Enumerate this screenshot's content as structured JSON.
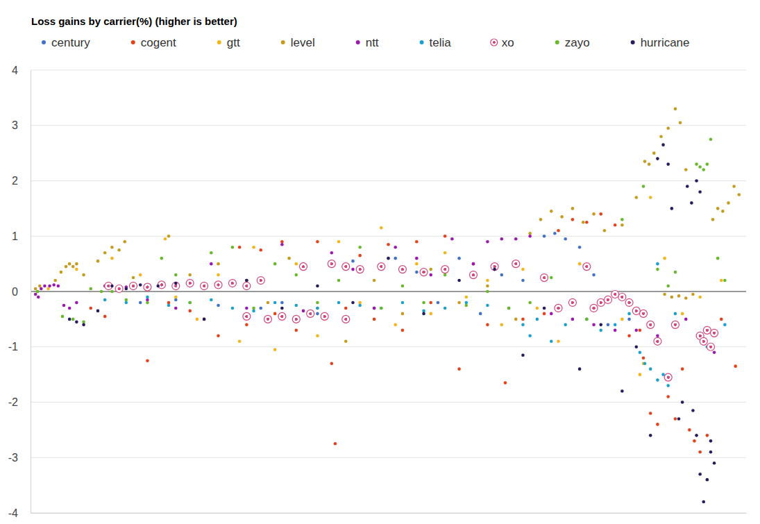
{
  "chart_data": {
    "type": "scatter",
    "title": "Loss gains by carrier(%) (higher is better)",
    "xlim": [
      -5,
      1005
    ],
    "xticks": [],
    "ylim": [
      -4,
      4
    ],
    "yticks": [
      -4,
      -3,
      -2,
      -1,
      0,
      1,
      2,
      3,
      4
    ],
    "grid": true,
    "legend": "top",
    "tick_labels": "y",
    "series": [
      {
        "name": "century",
        "color": "#4472c4",
        "marker": "circle",
        "x": [
          150,
          200,
          260,
          300,
          320,
          350,
          380,
          400,
          420,
          450,
          480,
          510,
          540,
          570,
          600,
          630,
          660,
          690,
          720,
          735,
          750,
          770,
          790,
          810,
          840
        ],
        "values": [
          -0.2,
          -0.15,
          -0.25,
          0.2,
          -0.3,
          -0.2,
          0.5,
          -0.4,
          0.5,
          0.55,
          -0.3,
          0.6,
          0.35,
          -0.2,
          0.6,
          -0.4,
          0.3,
          0.2,
          1.0,
          1.05,
          0.95,
          0.8,
          0.3,
          -0.6,
          -0.5
        ]
      },
      {
        "name": "cogent",
        "color": "#e2431c",
        "marker": "circle",
        "x": [
          80,
          100,
          160,
          190,
          220,
          240,
          260,
          290,
          300,
          320,
          340,
          350,
          370,
          400,
          420,
          440,
          460,
          480,
          500,
          520,
          540,
          560,
          580,
          600,
          620,
          640,
          665,
          690,
          720,
          740,
          760,
          780,
          800,
          820,
          840,
          855,
          860,
          870,
          880,
          895,
          905,
          915,
          925,
          932,
          940,
          950,
          970,
          990,
          425
        ],
        "values": [
          -0.3,
          -0.45,
          -1.25,
          -0.2,
          -0.35,
          -0.5,
          -0.8,
          0.8,
          -0.6,
          0.75,
          -0.4,
          0.9,
          -0.7,
          0.9,
          -1.3,
          -0.3,
          0.65,
          -0.5,
          0.85,
          -0.7,
          0.9,
          -0.2,
          1.0,
          -1.4,
          0.5,
          -0.6,
          -1.65,
          -0.5,
          -0.4,
          1.1,
          1.3,
          1.25,
          1.4,
          1.2,
          -0.8,
          -0.7,
          -1.2,
          -2.2,
          -2.4,
          -1.9,
          -2.3,
          -1.4,
          -2.5,
          -2.7,
          -2.9,
          -2.6,
          -0.5,
          -1.35,
          -2.75
        ]
      },
      {
        "name": "gtt",
        "color": "#f2b51c",
        "marker": "circle",
        "x": [
          20,
          60,
          110,
          150,
          185,
          200,
          230,
          260,
          290,
          310,
          340,
          370,
          400,
          410,
          430,
          460,
          490,
          510,
          540,
          560,
          580,
          610,
          640,
          660,
          690,
          710,
          740,
          770,
          800,
          830,
          855,
          860,
          870,
          890,
          915,
          940,
          970
        ],
        "values": [
          0.05,
          0.4,
          0.6,
          0.3,
          0.95,
          -0.1,
          -0.5,
          0.3,
          -0.9,
          0.8,
          -1.05,
          0.5,
          -0.8,
          -0.5,
          0.9,
          -0.2,
          1.15,
          -0.6,
          0.5,
          -0.4,
          0.7,
          -0.1,
          0.2,
          -0.6,
          0.4,
          -0.3,
          -0.9,
          0.5,
          -0.2,
          -0.5,
          -1.5,
          -1.3,
          1.7,
          0.6,
          -0.4,
          -0.1,
          0.2
        ]
      },
      {
        "name": "level",
        "color": "#c59c1f",
        "marker": "circle",
        "x": [
          2,
          5,
          8,
          30,
          38,
          45,
          50,
          55,
          60,
          70,
          90,
          100,
          110,
          120,
          128,
          140,
          160,
          190,
          220,
          260,
          300,
          330,
          360,
          400,
          440,
          480,
          520,
          560,
          600,
          640,
          680,
          700,
          715,
          730,
          745,
          760,
          775,
          790,
          805,
          830,
          850,
          862,
          868,
          875,
          885,
          895,
          905,
          912,
          920,
          890,
          900,
          910,
          920,
          930,
          958,
          965,
          972,
          980,
          988,
          995
        ],
        "values": [
          0.05,
          0,
          0.1,
          0.2,
          0.35,
          0.45,
          0.5,
          0.45,
          0.5,
          0.3,
          0.55,
          0.7,
          0.8,
          0.75,
          0.9,
          0.25,
          0.1,
          1.0,
          0.3,
          0.5,
          0.2,
          -0.2,
          0.6,
          -0.3,
          -0.9,
          0.2,
          -0.4,
          0.4,
          -0.2,
          0.1,
          -0.5,
          1.05,
          1.3,
          1.45,
          1.35,
          1.5,
          1.25,
          1.4,
          1.1,
          1.2,
          1.7,
          2.35,
          2.3,
          2.5,
          2.8,
          2.95,
          3.3,
          3.05,
          2.2,
          -0.05,
          -0.1,
          -0.08,
          -0.12,
          -0.05,
          1.3,
          1.5,
          1.45,
          1.6,
          1.9,
          1.75
        ]
      },
      {
        "name": "ntt",
        "color": "#9b1aae",
        "marker": "circle",
        "x": [
          2,
          6,
          10,
          15,
          22,
          28,
          34,
          42,
          50,
          60,
          100,
          130,
          160,
          200,
          250,
          300,
          350,
          380,
          420,
          450,
          480,
          510,
          540,
          560,
          590,
          620,
          640,
          660,
          680,
          700,
          730,
          760,
          790,
          820,
          850,
          880,
          920,
          945,
          960
        ],
        "values": [
          -0.05,
          -0.1,
          0.05,
          0.1,
          0.1,
          0.12,
          0.1,
          -0.25,
          -0.3,
          -0.2,
          0.1,
          0.08,
          -0.15,
          -0.3,
          0.5,
          -0.3,
          0.85,
          -0.35,
          0.7,
          0.4,
          -0.3,
          0.8,
          0.6,
          0.3,
          0.95,
          0.5,
          0.9,
          0.95,
          0.95,
          1.0,
          -0.4,
          -0.5,
          -0.6,
          -0.7,
          -0.7,
          -0.8,
          -0.5,
          -0.9,
          -1.1
        ]
      },
      {
        "name": "telia",
        "color": "#1ba1cc",
        "marker": "circle",
        "x": [
          100,
          130,
          160,
          190,
          220,
          250,
          280,
          310,
          340,
          370,
          400,
          430,
          460,
          490,
          520,
          550,
          580,
          610,
          640,
          670,
          690,
          700,
          710,
          730,
          750,
          780,
          800,
          820,
          840,
          855,
          862,
          870,
          880,
          888,
          895,
          880,
          905,
          950,
          960,
          975
        ],
        "values": [
          -0.15,
          -0.2,
          -0.1,
          -0.25,
          -0.2,
          -0.15,
          -0.3,
          -0.35,
          -0.2,
          -0.25,
          -0.3,
          -0.2,
          -0.25,
          -0.3,
          -0.2,
          -0.35,
          -0.3,
          -0.2,
          -0.25,
          -0.3,
          -0.6,
          -0.8,
          -0.5,
          -0.9,
          -0.6,
          -0.5,
          -0.7,
          -0.6,
          -0.4,
          -1.1,
          -1.3,
          -1.4,
          -1.6,
          -1.5,
          -1.7,
          0.5,
          -0.4,
          -1.0,
          -0.8,
          -0.6
        ]
      },
      {
        "name": "xo",
        "color": "#d6457e",
        "marker": "ring",
        "x": [
          105,
          120,
          140,
          160,
          180,
          200,
          220,
          240,
          260,
          280,
          300,
          320,
          300,
          330,
          350,
          370,
          390,
          410,
          440,
          380,
          420,
          440,
          460,
          490,
          520,
          550,
          580,
          620,
          650,
          680,
          720,
          740,
          760,
          780,
          790,
          800,
          810,
          820,
          830,
          840,
          850,
          860,
          870,
          880,
          895,
          905,
          940,
          945,
          950,
          955,
          960
        ],
        "values": [
          0.1,
          0.05,
          0.1,
          0.08,
          0.12,
          0.1,
          0.15,
          0.1,
          0.12,
          0.15,
          0.1,
          0.2,
          -0.45,
          -0.5,
          -0.45,
          -0.5,
          -0.4,
          -0.45,
          -0.5,
          0.45,
          0.5,
          0.45,
          0.4,
          0.45,
          0.4,
          0.35,
          0.4,
          0.3,
          0.45,
          0.5,
          0.25,
          -0.3,
          -0.2,
          0.45,
          -0.3,
          -0.2,
          -0.15,
          -0.05,
          -0.1,
          -0.2,
          -0.35,
          -0.4,
          -0.6,
          -0.9,
          -1.55,
          -0.6,
          -0.8,
          -0.9,
          -0.7,
          -1.0,
          -0.75
        ]
      },
      {
        "name": "zayo",
        "color": "#6ab82c",
        "marker": "circle",
        "x": [
          5,
          40,
          55,
          70,
          80,
          95,
          110,
          130,
          160,
          180,
          200,
          220,
          250,
          280,
          310,
          340,
          370,
          400,
          430,
          460,
          490,
          520,
          550,
          580,
          610,
          640,
          670,
          700,
          730,
          780,
          830,
          860,
          880,
          895,
          905,
          935,
          940,
          945,
          950,
          955,
          965,
          975
        ],
        "values": [
          0,
          -0.45,
          -0.5,
          -0.55,
          0.05,
          0,
          0,
          -0.15,
          -0.2,
          0.6,
          0.3,
          -0.2,
          0.7,
          0.8,
          -0.3,
          0.5,
          0.3,
          -0.2,
          0.2,
          0.8,
          -0.3,
          0.1,
          -0.2,
          0.3,
          -0.25,
          0,
          -0.3,
          -0.2,
          0.25,
          -0.5,
          1.3,
          1.9,
          0.4,
          0.1,
          0.35,
          2.3,
          2.25,
          2.2,
          2.3,
          2.75,
          0.6,
          0.2
        ]
      },
      {
        "name": "hurricane",
        "color": "#271c60",
        "marker": "circle",
        "x": [
          50,
          60,
          70,
          90,
          110,
          130,
          150,
          175,
          200,
          240,
          300,
          350,
          400,
          450,
          500,
          550,
          600,
          650,
          690,
          720,
          770,
          800,
          830,
          850,
          870,
          880,
          888,
          895,
          900,
          910,
          915,
          922,
          928,
          935,
          940,
          930,
          935,
          940,
          945,
          950,
          955,
          960,
          955
        ],
        "values": [
          -0.5,
          -0.55,
          -0.6,
          -0.35,
          0.1,
          0.05,
          0.12,
          0.1,
          0.15,
          -0.5,
          0.2,
          -0.3,
          0.1,
          -0.2,
          0.6,
          -0.4,
          0.2,
          0.4,
          -1.15,
          -0.3,
          -1.4,
          -0.6,
          -1.8,
          -1.0,
          -2.6,
          2.4,
          2.65,
          2.3,
          1.5,
          -2.3,
          -2.0,
          1.9,
          1.6,
          2.0,
          1.8,
          -2.15,
          -2.6,
          -3.3,
          -3.8,
          -3.4,
          -2.7,
          -3.1,
          -2.9
        ]
      }
    ]
  }
}
